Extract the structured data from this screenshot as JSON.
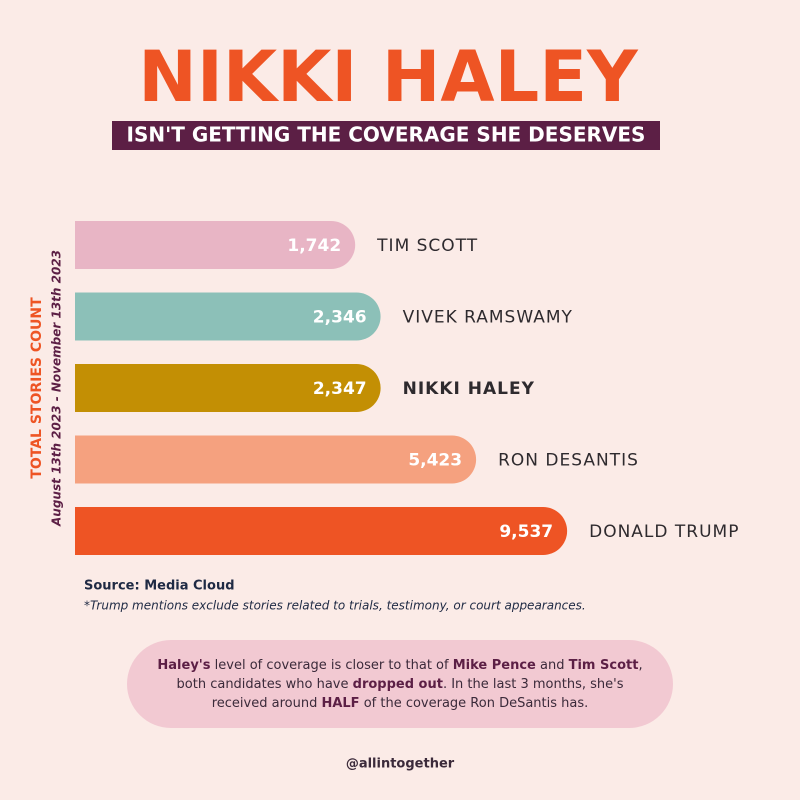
{
  "chart_data": {
    "type": "bar",
    "orientation": "horizontal",
    "title": "NIKKI HALEY",
    "subtitle": "ISN'T GETTING THE COVERAGE SHE DESERVES",
    "y_label": "TOTAL STORIES COUNT",
    "y_sublabel": "August 13th 2023 - November 13th 2023",
    "categories": [
      "TIM SCOTT",
      "VIVEK RAMSWAMY",
      "NIKKI HALEY",
      "RON DESANTIS",
      "DONALD TRUMP"
    ],
    "values": [
      1742,
      2346,
      2347,
      5423,
      9537
    ],
    "value_labels": [
      "1,742",
      "2,346",
      "2,347",
      "5,423",
      "9,537"
    ],
    "colors": [
      "#e8b5c5",
      "#8cc0b8",
      "#c38f04",
      "#f5a17f",
      "#ee5424"
    ],
    "highlight_index": 2,
    "source": "Source: Media Cloud",
    "footnote": "*Trump mentions exclude stories related to trials, testimony, or court appearances.",
    "callout": [
      {
        "text": "Haley's",
        "bold": true
      },
      {
        "text": " level of coverage is closer to that of ",
        "bold": false
      },
      {
        "text": "Mike Pence",
        "bold": true
      },
      {
        "text": " and ",
        "bold": false
      },
      {
        "text": "Tim Scott",
        "bold": true
      },
      {
        "text": ", both candidates who have ",
        "bold": false
      },
      {
        "text": "dropped out",
        "bold": true
      },
      {
        "text": ". In the last 3 months, she's received around ",
        "bold": false
      },
      {
        "text": "HALF",
        "bold": true
      },
      {
        "text": " of the coverage Ron DeSantis has.",
        "bold": false
      }
    ],
    "handle": "@allintogether"
  }
}
